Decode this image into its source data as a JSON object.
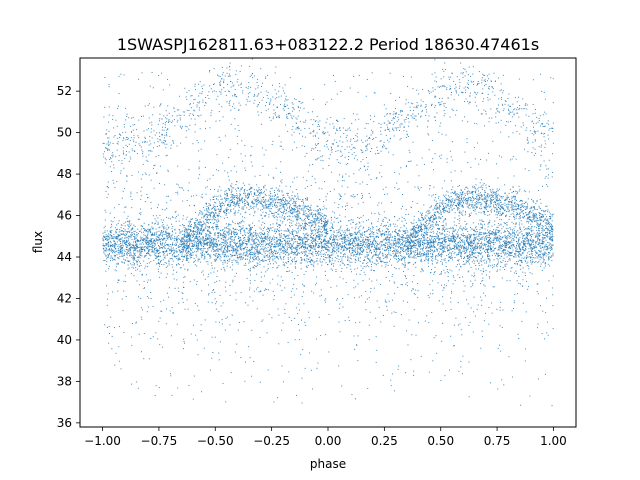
{
  "chart_data": {
    "type": "scatter",
    "title": "1SWASPJ162811.63+083122.2 Period 18630.47461s",
    "xlabel": "phase",
    "ylabel": "flux",
    "xlim": [
      -1.1,
      1.1
    ],
    "ylim": [
      35.8,
      53.6
    ],
    "xticks": [
      -1.0,
      -0.75,
      -0.5,
      -0.25,
      0.0,
      0.25,
      0.5,
      0.75,
      1.0
    ],
    "xtick_labels": [
      "−1.00",
      "−0.75",
      "−0.50",
      "−0.25",
      "0.00",
      "0.25",
      "0.50",
      "0.75",
      "1.00"
    ],
    "yticks": [
      36,
      38,
      40,
      42,
      44,
      46,
      48,
      50,
      52
    ],
    "ytick_labels": [
      "36",
      "38",
      "40",
      "42",
      "44",
      "46",
      "48",
      "50",
      "52"
    ],
    "grid": false,
    "legend": "none",
    "marker_color": "#1f77b4",
    "phase_range": [
      -1.0,
      1.0
    ],
    "components": {
      "main_band": {
        "description": "dense flat band",
        "flux_center": 44.6,
        "flux_spread": 0.5
      },
      "hump": {
        "description": "rising hump branch (repeats every 1.0 in phase)",
        "phase_start": -0.65,
        "phase_peak": -0.38,
        "phase_end": 0.15,
        "flux_peak": 46.8
      },
      "upper_branch": {
        "description": "faint upper sinusoidal branch",
        "phase_peak": -0.4,
        "flux_mid": 50.8,
        "flux_amplitude": 1.4
      },
      "scatter_range": [
        36.8,
        52.9
      ]
    }
  }
}
